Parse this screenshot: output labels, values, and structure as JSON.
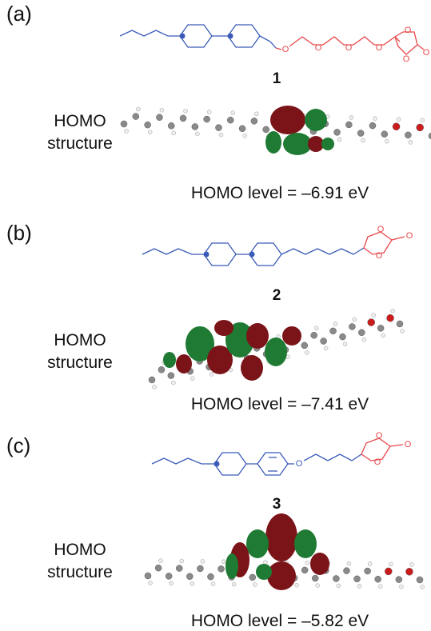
{
  "panels": [
    {
      "label": "(a)",
      "compound": "1",
      "atoms": [
        "O",
        "O",
        "O",
        "O",
        "O",
        "O",
        "O"
      ],
      "homo_label": [
        "HOMO",
        "structure"
      ],
      "homo_level": "HOMO level = –6.91 eV"
    },
    {
      "label": "(b)",
      "compound": "2",
      "atoms": [
        "O",
        "O",
        "O"
      ],
      "homo_label": [
        "HOMO",
        "structure"
      ],
      "homo_level": "HOMO level = –7.41 eV"
    },
    {
      "label": "(c)",
      "compound": "3",
      "atoms": [
        "O",
        "O",
        "O",
        "O"
      ],
      "homo_label": [
        "HOMO",
        "structure"
      ],
      "homo_level": "HOMO level = –5.82 eV"
    }
  ]
}
